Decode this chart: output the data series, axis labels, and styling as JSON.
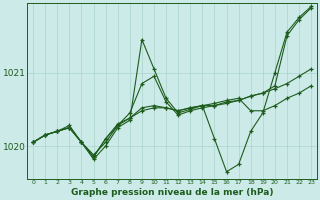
{
  "bg_color": "#cceae7",
  "grid_color": "#aad4d0",
  "line_color": "#1e5c1e",
  "marker": "+",
  "title": "Graphe pression niveau de la mer (hPa)",
  "xlabel_ticks": [
    0,
    1,
    2,
    3,
    4,
    5,
    6,
    7,
    8,
    9,
    10,
    11,
    12,
    13,
    14,
    15,
    16,
    17,
    18,
    19,
    20,
    21,
    22,
    23
  ],
  "ylim": [
    1019.55,
    1021.95
  ],
  "yticks": [
    1020,
    1021
  ],
  "series": [
    [
      1020.05,
      1020.15,
      1020.2,
      1020.25,
      1020.05,
      1019.82,
      1020.0,
      1020.25,
      1020.35,
      1021.45,
      1021.05,
      1020.65,
      1020.45,
      1020.5,
      1020.55,
      1020.1,
      1019.65,
      1019.75,
      1020.2,
      1020.45,
      1021.0,
      1021.55,
      1021.75,
      1021.9
    ],
    [
      1020.05,
      1020.15,
      1020.2,
      1020.28,
      1020.05,
      1019.88,
      1020.05,
      1020.28,
      1020.45,
      1020.85,
      1020.95,
      1020.6,
      1020.42,
      1020.48,
      1020.52,
      1020.55,
      1020.58,
      1020.62,
      1020.68,
      1020.72,
      1020.82,
      1021.5,
      1021.72,
      1021.88
    ],
    [
      1020.05,
      1020.15,
      1020.2,
      1020.25,
      1020.05,
      1019.85,
      1020.1,
      1020.3,
      1020.38,
      1020.52,
      1020.55,
      1020.52,
      1020.48,
      1020.52,
      1020.55,
      1020.58,
      1020.62,
      1020.65,
      1020.48,
      1020.48,
      1020.55,
      1020.65,
      1020.72,
      1020.82
    ],
    [
      1020.05,
      1020.15,
      1020.2,
      1020.25,
      1020.05,
      1019.85,
      1020.1,
      1020.28,
      1020.38,
      1020.48,
      1020.52,
      1020.52,
      1020.48,
      1020.52,
      1020.55,
      1020.55,
      1020.6,
      1020.62,
      1020.68,
      1020.72,
      1020.78,
      1020.85,
      1020.95,
      1021.05
    ]
  ]
}
